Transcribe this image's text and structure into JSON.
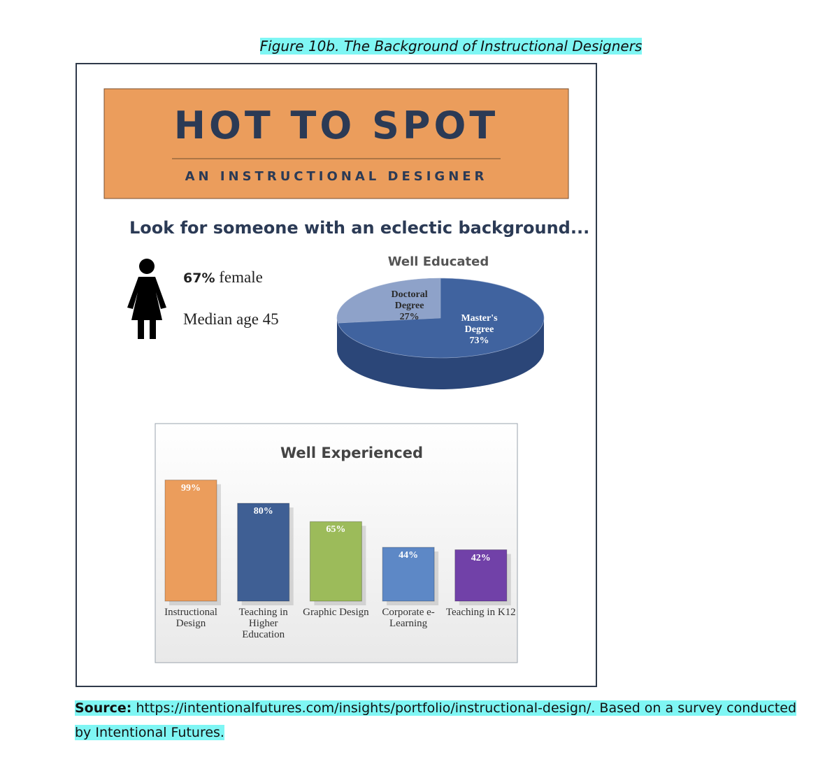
{
  "caption": "Figure 10b. The Background of Instructional Designers",
  "banner": {
    "title": "HOT TO SPOT",
    "subtitle": "AN INSTRUCTIONAL DESIGNER"
  },
  "tagline": "Look for someone with an eclectic background...",
  "profile": {
    "female_share": "67%",
    "female_label": "female",
    "median_age": "Median age 45"
  },
  "education_chart": {
    "type": "pie",
    "title": "Well Educated",
    "categories": [
      "Doctoral Degree",
      "Master's Degree"
    ],
    "values": [
      27,
      73
    ],
    "value_labels": [
      "27%",
      "73%"
    ],
    "colors": [
      "#8ea2c9",
      "#40639f"
    ]
  },
  "experience_chart": {
    "type": "bar",
    "title": "Well Experienced",
    "categories": [
      "Instructional Design",
      "Teaching in Higher Education",
      "Graphic Design",
      "Corporate e-Learning",
      "Teaching in K12"
    ],
    "values": [
      99,
      80,
      65,
      44,
      42
    ],
    "value_labels": [
      "99%",
      "80%",
      "65%",
      "44%",
      "42%"
    ],
    "colors": [
      "#eb9d5c",
      "#3f5f94",
      "#9cbb5a",
      "#5d88c6",
      "#7141a8"
    ]
  },
  "source": {
    "label": "Source:",
    "text": "https://intentionalfutures.com/insights/portfolio/instructional-design/. Based on a survey conducted by Intentional Futures."
  }
}
